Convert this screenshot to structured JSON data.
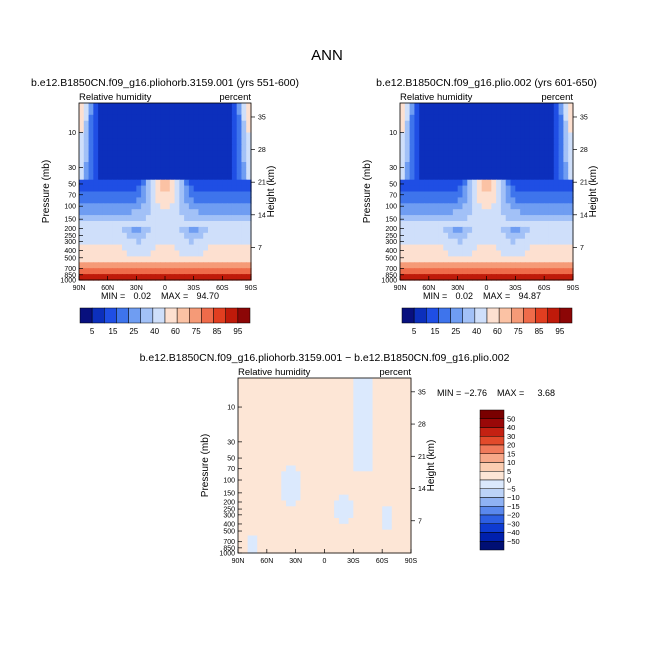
{
  "figure": {
    "title": "ANN"
  },
  "colors": {
    "palette12": [
      "#08107e",
      "#0c2fbc",
      "#1f4ee4",
      "#3e74ec",
      "#6f9df2",
      "#a2c1f7",
      "#cfdffa",
      "#fde0d0",
      "#fbc2a4",
      "#f59a77",
      "#ef6b4a",
      "#e13e20",
      "#bf1a0a",
      "#8c0606"
    ],
    "palette_diff": [
      "#000f74",
      "#0020ad",
      "#0e3bd1",
      "#2d5fe3",
      "#5a88ed",
      "#8fb2f4",
      "#bcd3f8",
      "#dbe9fd",
      "#fde6d6",
      "#fbcdb1",
      "#f7a889",
      "#f07a5b",
      "#e24a2b",
      "#c42112",
      "#9a0808",
      "#7a0000"
    ]
  },
  "chart_data": [
    {
      "type": "heatmap",
      "name": "panel-1",
      "title": "b.e12.B1850CN.f09_g16.pliohorb.3159.001 (yrs 551-600)",
      "left_label": "Relative humidity",
      "right_label": "percent",
      "xlabel": "",
      "ylabel": "Pressure (mb)",
      "y2label": "Height (km)",
      "x_ticks": [
        "90N",
        "60N",
        "30N",
        "0",
        "30S",
        "60S",
        "90S"
      ],
      "y_ticks": [
        "10",
        "30",
        "50",
        "70",
        "100",
        "150",
        "200",
        "250",
        "300",
        "400",
        "500",
        "700",
        "850",
        "1000"
      ],
      "y2_ticks": [
        "35",
        "28",
        "21",
        "14",
        "7"
      ],
      "min": "0.02",
      "max": "94.70",
      "colorbar_labels": [
        "5",
        "15",
        "25",
        "40",
        "60",
        "75",
        "85",
        "95"
      ],
      "grid": false
    },
    {
      "type": "heatmap",
      "name": "panel-2",
      "title": "b.e12.B1850CN.f09_g16.plio.002 (yrs 601-650)",
      "left_label": "Relative humidity",
      "right_label": "percent",
      "xlabel": "",
      "ylabel": "Pressure (mb)",
      "y2label": "Height (km)",
      "x_ticks": [
        "90N",
        "60N",
        "30N",
        "0",
        "30S",
        "60S",
        "90S"
      ],
      "y_ticks": [
        "10",
        "30",
        "50",
        "70",
        "100",
        "150",
        "200",
        "250",
        "300",
        "400",
        "500",
        "700",
        "850",
        "1000"
      ],
      "y2_ticks": [
        "35",
        "28",
        "21",
        "14",
        "7"
      ],
      "min": "0.02",
      "max": "94.87",
      "colorbar_labels": [
        "5",
        "15",
        "25",
        "40",
        "60",
        "75",
        "85",
        "95"
      ],
      "grid": false
    },
    {
      "type": "heatmap",
      "name": "panel-diff",
      "title": "b.e12.B1850CN.f09_g16.pliohorb.3159.001 − b.e12.B1850CN.f09_g16.plio.002",
      "left_label": "Relative humidity",
      "right_label": "percent",
      "xlabel": "",
      "ylabel": "Pressure (mb)",
      "y2label": "Height (km)",
      "x_ticks": [
        "90N",
        "60N",
        "30N",
        "0",
        "30S",
        "60S",
        "90S"
      ],
      "y_ticks": [
        "10",
        "30",
        "50",
        "70",
        "100",
        "150",
        "200",
        "250",
        "300",
        "400",
        "500",
        "700",
        "850",
        "1000"
      ],
      "y2_ticks": [
        "35",
        "28",
        "21",
        "14",
        "7"
      ],
      "min": "−2.76",
      "max": "3.68",
      "colorbar_labels": [
        "50",
        "40",
        "30",
        "20",
        "15",
        "10",
        "5",
        "0",
        "−5",
        "−10",
        "−15",
        "−20",
        "−30",
        "−40",
        "−50"
      ],
      "grid": false
    }
  ]
}
